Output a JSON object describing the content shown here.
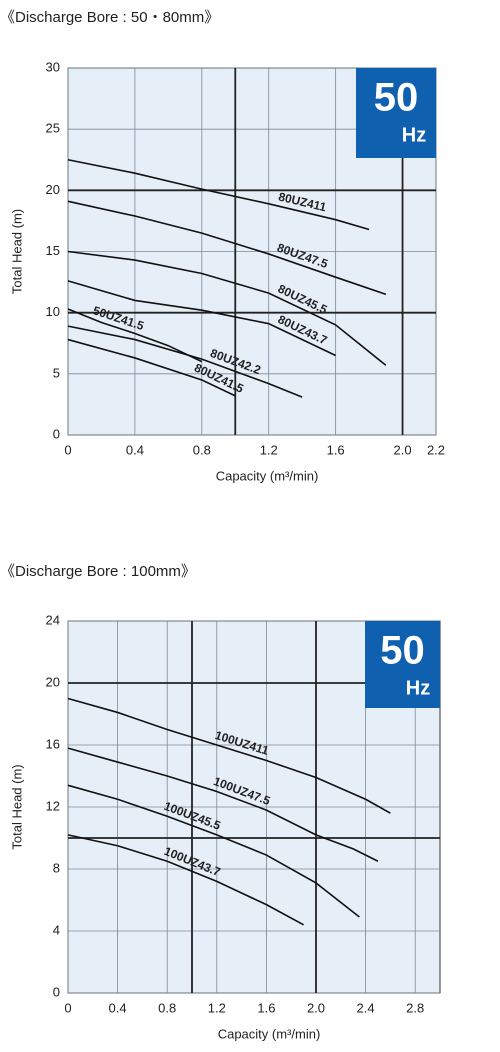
{
  "chart_data": [
    {
      "type": "line",
      "title": "《Discharge Bore : 50・80mm》",
      "badge": {
        "value": "50",
        "unit": "Hz"
      },
      "xlabel": "Capacity (m³/min)",
      "ylabel": "Total Head (m)",
      "xlim": [
        0,
        2.2
      ],
      "ylim": [
        0,
        30
      ],
      "xticks": [
        0,
        0.4,
        0.8,
        1.2,
        1.6,
        {
          "value": 2,
          "label": "2.0"
        },
        2.2
      ],
      "yticks": [
        0,
        5,
        10,
        15,
        20,
        25,
        30
      ],
      "major_grid": {
        "x": [
          1,
          2
        ],
        "y": [
          10,
          20
        ]
      },
      "grid": true,
      "background": "#e6eff8",
      "badge_color": "#1060b0",
      "series": [
        {
          "name": "80UZ411",
          "color": "#111111",
          "x": [
            0,
            0.4,
            0.8,
            1.2,
            1.6,
            1.8
          ],
          "values": [
            22.5,
            21.4,
            20.1,
            18.9,
            17.6,
            16.8
          ]
        },
        {
          "name": "80UZ47.5",
          "color": "#111111",
          "x": [
            0,
            0.4,
            0.8,
            1.2,
            1.6,
            1.9
          ],
          "values": [
            19.1,
            17.9,
            16.5,
            14.8,
            12.9,
            11.5
          ]
        },
        {
          "name": "80UZ45.5",
          "color": "#111111",
          "x": [
            0,
            0.4,
            0.8,
            1.2,
            1.6,
            1.9
          ],
          "values": [
            15,
            14.3,
            13.2,
            11.6,
            9,
            5.7
          ]
        },
        {
          "name": "80UZ43.7",
          "color": "#111111",
          "x": [
            0,
            0.4,
            0.8,
            1.2,
            1.6
          ],
          "values": [
            12.6,
            11,
            10.2,
            9.1,
            6.5
          ]
        },
        {
          "name": "80UZ42.2",
          "color": "#111111",
          "x": [
            0,
            0.4,
            0.8,
            1.2,
            1.4
          ],
          "values": [
            8.9,
            7.8,
            6.2,
            4.2,
            3.1
          ]
        },
        {
          "name": "50UZ41.5",
          "color": "#111111",
          "x": [
            0,
            0.2,
            0.4,
            0.6,
            0.8
          ],
          "values": [
            10.3,
            9.2,
            8.3,
            7.3,
            6
          ]
        },
        {
          "name": "80UZ41.5",
          "color": "#111111",
          "x": [
            0,
            0.4,
            0.8,
            1
          ],
          "values": [
            7.8,
            6.3,
            4.5,
            3.2
          ]
        }
      ]
    },
    {
      "type": "line",
      "title": "《Discharge Bore : 100mm》",
      "badge": {
        "value": "50",
        "unit": "Hz"
      },
      "xlabel": "Capacity (m³/min)",
      "ylabel": "Total Head (m)",
      "xlim": [
        0,
        3
      ],
      "ylim": [
        0,
        24
      ],
      "xticks": [
        0,
        0.4,
        0.8,
        1.2,
        1.6,
        {
          "value": 2,
          "label": "2.0"
        },
        2.4,
        2.8
      ],
      "yticks": [
        0,
        4,
        8,
        12,
        16,
        20,
        24
      ],
      "major_grid": {
        "x": [
          1,
          2
        ],
        "y": [
          10,
          20
        ]
      },
      "grid": true,
      "background": "#e6eff8",
      "badge_color": "#1060b0",
      "series": [
        {
          "name": "100UZ411",
          "color": "#111111",
          "x": [
            0,
            0.4,
            0.8,
            1.2,
            1.6,
            2,
            2.4,
            2.6
          ],
          "values": [
            19,
            18.1,
            17,
            16,
            15,
            13.9,
            12.5,
            11.6
          ]
        },
        {
          "name": "100UZ47.5",
          "color": "#111111",
          "x": [
            0,
            0.4,
            0.8,
            1.2,
            1.6,
            2,
            2.3,
            2.5
          ],
          "values": [
            15.8,
            14.9,
            14,
            13,
            11.8,
            10.2,
            9.3,
            8.5
          ]
        },
        {
          "name": "100UZ45.5",
          "color": "#111111",
          "x": [
            0,
            0.4,
            0.8,
            1.2,
            1.6,
            2,
            2.35
          ],
          "values": [
            13.4,
            12.5,
            11.4,
            10.2,
            8.9,
            7.1,
            4.9
          ]
        },
        {
          "name": "100UZ43.7",
          "color": "#111111",
          "x": [
            0,
            0.4,
            0.8,
            1.2,
            1.6,
            1.9
          ],
          "values": [
            10.2,
            9.5,
            8.5,
            7.2,
            5.7,
            4.4
          ]
        }
      ]
    }
  ]
}
